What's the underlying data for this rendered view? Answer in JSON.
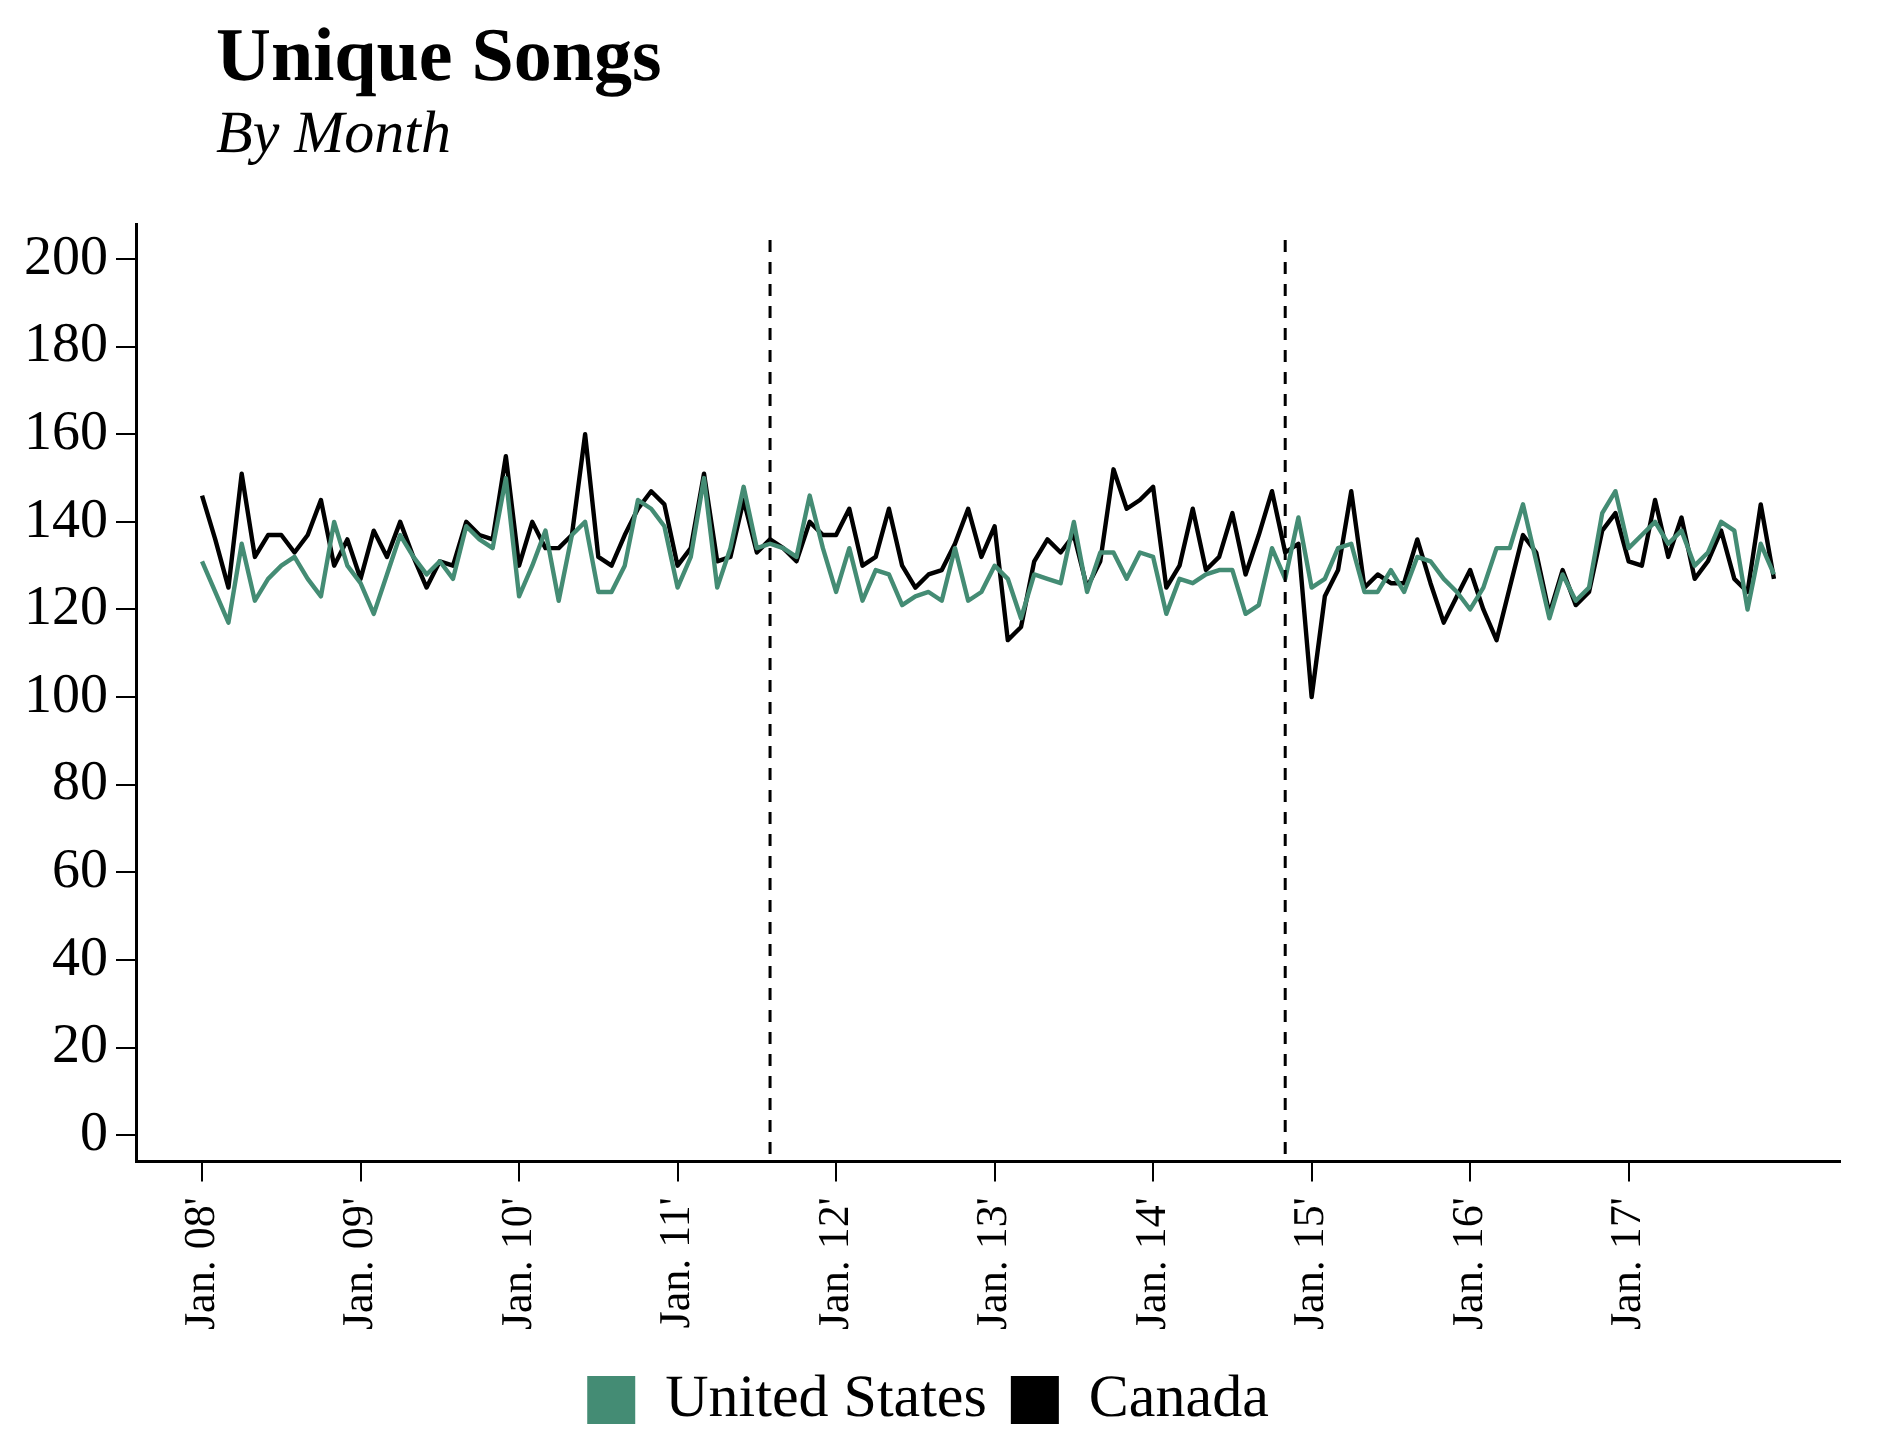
{
  "chart_data": {
    "type": "line",
    "title": "Unique Songs",
    "subtitle": "By Month",
    "x": [
      "2008-01",
      "2008-02",
      "2008-03",
      "2008-04",
      "2008-05",
      "2008-06",
      "2008-07",
      "2008-08",
      "2008-09",
      "2008-10",
      "2008-11",
      "2008-12",
      "2009-01",
      "2009-02",
      "2009-03",
      "2009-04",
      "2009-05",
      "2009-06",
      "2009-07",
      "2009-08",
      "2009-09",
      "2009-10",
      "2009-11",
      "2009-12",
      "2010-01",
      "2010-02",
      "2010-03",
      "2010-04",
      "2010-05",
      "2010-06",
      "2010-07",
      "2010-08",
      "2010-09",
      "2010-10",
      "2010-11",
      "2010-12",
      "2011-01",
      "2011-02",
      "2011-03",
      "2011-04",
      "2011-05",
      "2011-06",
      "2011-07",
      "2011-08",
      "2011-09",
      "2011-10",
      "2011-11",
      "2011-12",
      "2012-01",
      "2012-02",
      "2012-03",
      "2012-04",
      "2012-05",
      "2012-06",
      "2012-07",
      "2012-08",
      "2012-09",
      "2012-10",
      "2012-11",
      "2012-12",
      "2013-01",
      "2013-02",
      "2013-03",
      "2013-04",
      "2013-05",
      "2013-06",
      "2013-07",
      "2013-08",
      "2013-09",
      "2013-10",
      "2013-11",
      "2013-12",
      "2014-01",
      "2014-02",
      "2014-03",
      "2014-04",
      "2014-05",
      "2014-06",
      "2014-07",
      "2014-08",
      "2014-09",
      "2014-10",
      "2014-11",
      "2014-12",
      "2015-01",
      "2015-02",
      "2015-03",
      "2015-04",
      "2015-05",
      "2015-06",
      "2015-07",
      "2015-08",
      "2015-09",
      "2015-10",
      "2015-11",
      "2015-12",
      "2016-01",
      "2016-02",
      "2016-03",
      "2016-04",
      "2016-05",
      "2016-06",
      "2016-07",
      "2016-08",
      "2016-09",
      "2016-10",
      "2016-11",
      "2016-12",
      "2017-01",
      "2017-02",
      "2017-03",
      "2017-04",
      "2017-05",
      "2017-06",
      "2017-07",
      "2017-08",
      "2017-09",
      "2017-10",
      "2017-11",
      "2017-12"
    ],
    "series": [
      {
        "name": "United States",
        "color": "#448c74",
        "values": [
          131,
          124,
          117,
          135,
          122,
          127,
          130,
          132,
          127,
          123,
          140,
          130,
          126,
          119,
          128,
          137,
          132,
          128,
          131,
          127,
          139,
          136,
          134,
          150,
          123,
          130,
          138,
          122,
          137,
          140,
          124,
          124,
          130,
          145,
          143,
          139,
          125,
          132,
          150,
          125,
          134,
          148,
          134,
          135,
          134,
          132,
          146,
          134,
          124,
          134,
          122,
          129,
          128,
          121,
          123,
          124,
          122,
          134,
          122,
          124,
          130,
          127,
          118,
          128,
          127,
          126,
          140,
          124,
          133,
          133,
          127,
          133,
          132,
          119,
          127,
          126,
          128,
          129,
          129,
          119,
          121,
          134,
          127,
          141,
          125,
          127,
          134,
          135,
          124,
          124,
          129,
          124,
          132,
          131,
          127,
          124,
          120,
          125,
          134,
          134,
          144,
          131,
          118,
          128,
          122,
          125,
          142,
          147,
          134,
          137,
          140,
          135,
          138,
          130,
          133,
          140,
          138,
          120,
          135,
          128
        ]
      },
      {
        "name": "Canada",
        "color": "#000000",
        "values": [
          146,
          136,
          125,
          151,
          132,
          137,
          137,
          133,
          137,
          145,
          130,
          136,
          127,
          138,
          132,
          140,
          132,
          125,
          131,
          130,
          140,
          137,
          136,
          155,
          130,
          140,
          134,
          134,
          137,
          160,
          132,
          130,
          137,
          143,
          147,
          144,
          130,
          134,
          151,
          131,
          132,
          145,
          133,
          136,
          134,
          131,
          140,
          137,
          137,
          143,
          130,
          132,
          143,
          130,
          125,
          128,
          129,
          135,
          143,
          132,
          139,
          113,
          116,
          131,
          136,
          133,
          137,
          125,
          131,
          152,
          143,
          145,
          148,
          125,
          130,
          143,
          129,
          132,
          142,
          128,
          137,
          147,
          133,
          135,
          100,
          123,
          129,
          147,
          125,
          128,
          126,
          126,
          136,
          126,
          117,
          123,
          129,
          120,
          113,
          125,
          137,
          133,
          119,
          129,
          121,
          124,
          138,
          142,
          131,
          130,
          145,
          132,
          141,
          127,
          131,
          138,
          127,
          124,
          144,
          127
        ]
      }
    ],
    "xlim": [
      "2007-08",
      "2018-05"
    ],
    "xticks": [
      {
        "value": "2008-01",
        "label": "Jan. 08'"
      },
      {
        "value": "2009-01",
        "label": "Jan. 09'"
      },
      {
        "value": "2010-01",
        "label": "Jan. 10'"
      },
      {
        "value": "2011-01",
        "label": "Jan. 11'"
      },
      {
        "value": "2012-01",
        "label": "Jan. 12'"
      },
      {
        "value": "2013-01",
        "label": "Jan. 13'"
      },
      {
        "value": "2014-01",
        "label": "Jan. 14'"
      },
      {
        "value": "2015-01",
        "label": "Jan. 15'"
      },
      {
        "value": "2016-01",
        "label": "Jan. 16'"
      },
      {
        "value": "2017-01",
        "label": "Jan. 17'"
      }
    ],
    "ylim": [
      -6,
      208
    ],
    "yticks": [
      0,
      20,
      40,
      60,
      80,
      100,
      120,
      140,
      160,
      180,
      200
    ],
    "ref_lines": [
      {
        "axis": "x",
        "value": "2011-08",
        "color": "#000000",
        "line_style": "dashed"
      },
      {
        "axis": "x",
        "value": "2014-11",
        "color": "#000000",
        "line_style": "dashed"
      }
    ],
    "grid": false,
    "legend": "bottom",
    "line_style": "solid"
  }
}
